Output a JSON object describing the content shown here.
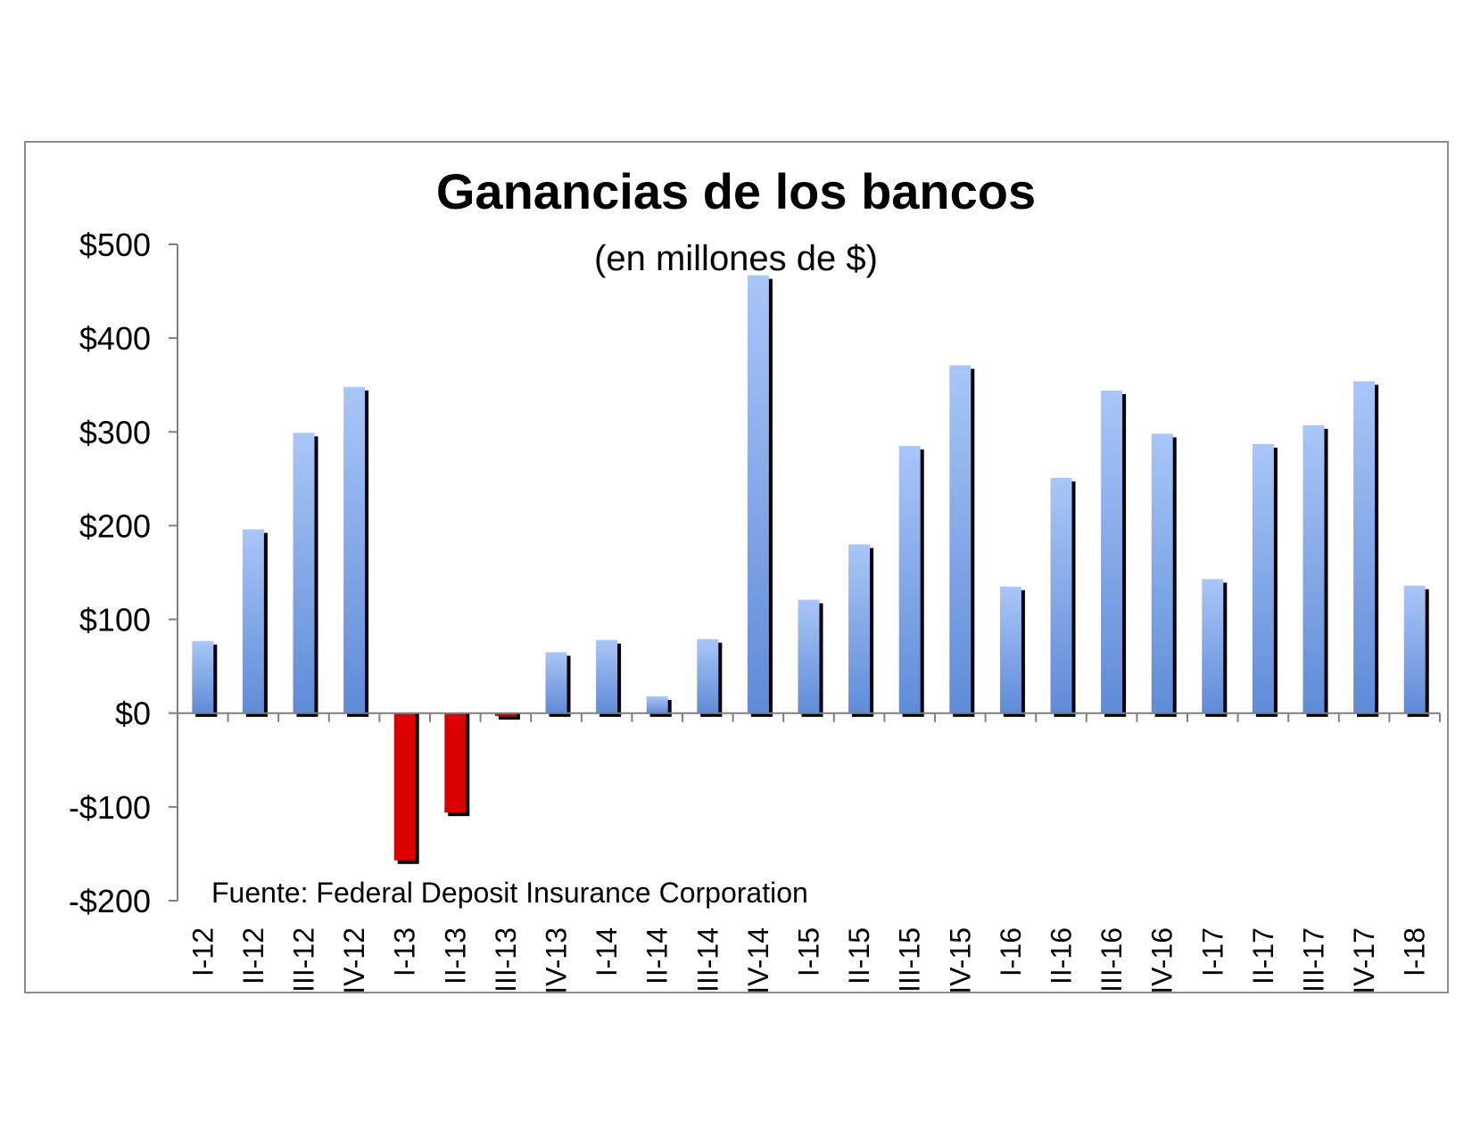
{
  "chart_data": {
    "type": "bar",
    "title": "Ganancias de los bancos",
    "subtitle": "(en millones de $)",
    "source": "Fuente: Federal Deposit Insurance Corporation",
    "ylim": [
      -200,
      500
    ],
    "yticks": [
      500,
      400,
      300,
      200,
      100,
      0,
      -100,
      -200
    ],
    "ytick_labels": [
      "$500",
      "$400",
      "$300",
      "$200",
      "$100",
      "$0",
      "-$100",
      "-$200"
    ],
    "categories": [
      "I-12",
      "II-12",
      "III-12",
      "IV-12",
      "I-13",
      "II-13",
      "III-13",
      "IV-13",
      "I-14",
      "II-14",
      "III-14",
      "IV-14",
      "I-15",
      "II-15",
      "III-15",
      "IV-15",
      "I-16",
      "II-16",
      "III-16",
      "IV-16",
      "I-17",
      "II-17",
      "III-17",
      "IV-17",
      "I-18"
    ],
    "values": [
      77,
      196,
      299,
      348,
      -157,
      -106,
      -3,
      65,
      78,
      18,
      79,
      467,
      121,
      180,
      285,
      371,
      135,
      251,
      344,
      298,
      143,
      287,
      307,
      354,
      136
    ],
    "colors": {
      "positive_top": "#a9c6f8",
      "positive_bottom": "#5f8bd7",
      "negative": "#dd0000",
      "shadow": "#000000"
    },
    "grid": false,
    "legend": "none"
  }
}
